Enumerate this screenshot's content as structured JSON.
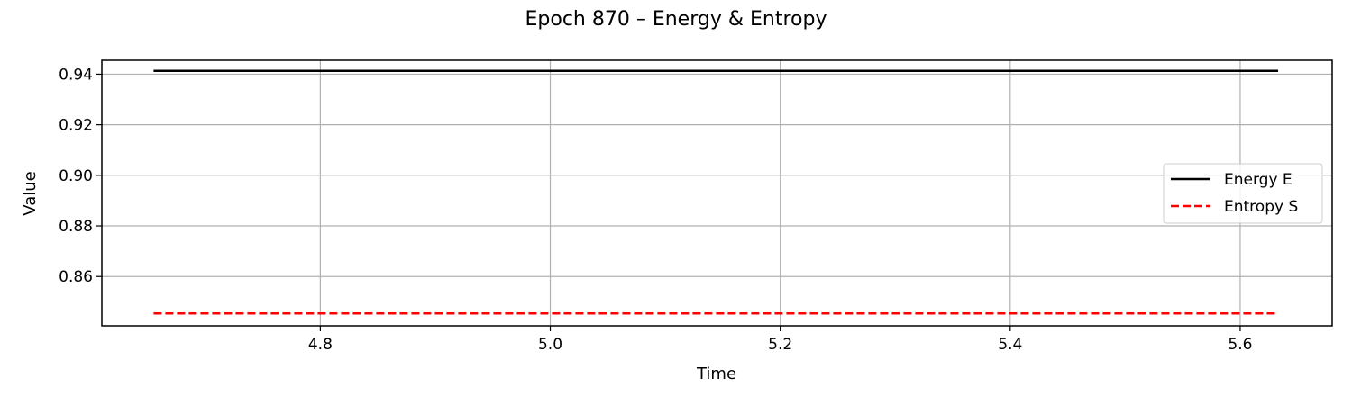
{
  "chart_data": {
    "type": "line",
    "title": "Epoch 870 – Energy & Entropy",
    "xlabel": "Time",
    "ylabel": "Value",
    "xlim": [
      4.61,
      5.68
    ],
    "ylim": [
      0.8405,
      0.9455
    ],
    "xticks": [
      4.8,
      5.0,
      5.2,
      5.4,
      5.6
    ],
    "xtick_labels": [
      "4.8",
      "5.0",
      "5.2",
      "5.4",
      "5.6"
    ],
    "yticks": [
      0.86,
      0.88,
      0.9,
      0.92,
      0.94
    ],
    "ytick_labels": [
      "0.86",
      "0.88",
      "0.90",
      "0.92",
      "0.94"
    ],
    "grid": true,
    "legend_position": "center-right",
    "series": [
      {
        "name": "Energy E",
        "color": "#000000",
        "style": "solid",
        "x": [
          4.655,
          5.633
        ],
        "y": [
          0.9413,
          0.9413
        ]
      },
      {
        "name": "Entropy S",
        "color": "#ff0000",
        "style": "dashed",
        "x": [
          4.655,
          5.633
        ],
        "y": [
          0.8454,
          0.8454
        ]
      }
    ]
  }
}
